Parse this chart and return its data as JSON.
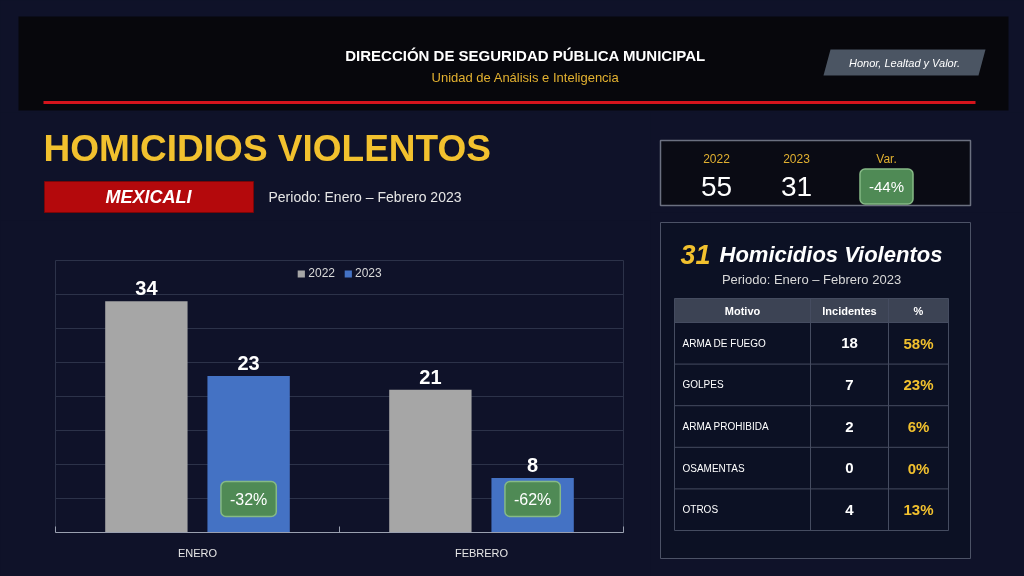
{
  "chart_data": [
    {
      "type": "other",
      "title": "DIRECCIÓN DE SEGURIDAD PÚBLICA MUNICIPAL",
      "subtitle": "Unidad de Análisis e Inteligencia",
      "annotations": [
        "Honor, Lealtad y Valor."
      ]
    },
    {
      "type": "bar",
      "title": "HOMICIDIOS VIOLENTOS",
      "subtitle": "Periodo: Enero – Febrero 2023",
      "annotations": [
        "MEXICALI",
        "-32%",
        "-62%"
      ],
      "categories": [
        "ENERO",
        "FEBRERO"
      ],
      "series": [
        {
          "name": "2022",
          "color": "#a6a6a6",
          "values": [
            34,
            21
          ]
        },
        {
          "name": "2023",
          "color": "#4472c4",
          "values": [
            23,
            8
          ]
        }
      ],
      "ylim": [
        0,
        40
      ],
      "yticks": [
        {
          "value": 0,
          "label": null
        },
        {
          "value": 5,
          "label": null
        },
        {
          "value": 10,
          "label": null
        },
        {
          "value": 15,
          "label": null
        },
        {
          "value": 20,
          "label": null
        },
        {
          "value": 25,
          "label": null
        },
        {
          "value": 30,
          "label": null
        },
        {
          "value": 35,
          "label": null
        },
        {
          "value": 40,
          "label": null
        }
      ],
      "grid": "y",
      "legend": "top",
      "data_labels": true,
      "tick_labels": "x"
    },
    {
      "type": "other",
      "annotations": [
        "2022",
        "55",
        "2023",
        "31",
        "Var.",
        "-44%"
      ]
    },
    {
      "type": "other",
      "title": "31 Homicidios Violentos",
      "subtitle": "Periodo: Enero – Febrero 2023",
      "ylabel": "Motivo",
      "categories": [
        "ARMA DE FUEGO",
        "GOLPES",
        "ARMA PROHIBIDA",
        "OSAMENTAS",
        "OTROS"
      ],
      "series": [
        {
          "name": "Incidentes",
          "values": [
            18,
            7,
            2,
            0,
            4
          ],
          "value_labels": [
            "18",
            "7",
            "2",
            "0",
            "4"
          ]
        },
        {
          "name": "%",
          "values": [
            58,
            23,
            6,
            0,
            13
          ],
          "value_labels": [
            "58%",
            "23%",
            "6%",
            "0%",
            "13%"
          ]
        }
      ]
    }
  ]
}
